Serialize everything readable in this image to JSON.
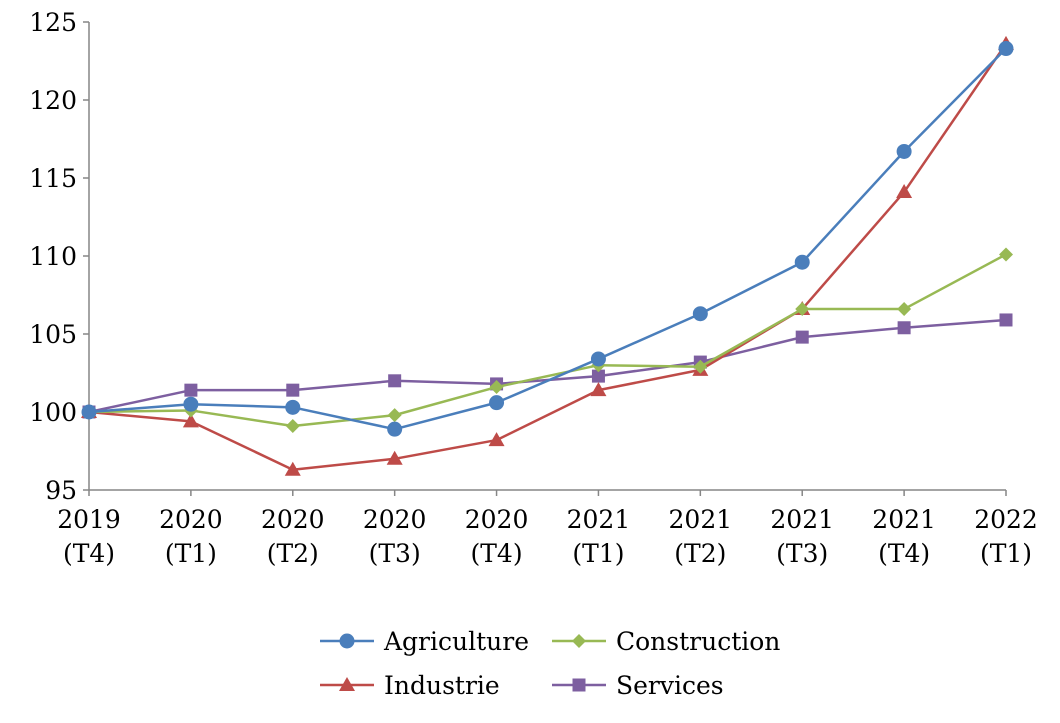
{
  "chart_data": {
    "type": "line",
    "title": "",
    "xlabel": "",
    "ylabel": "",
    "ylim": [
      95,
      125
    ],
    "yticks": [
      95,
      100,
      105,
      110,
      115,
      120,
      125
    ],
    "grid": false,
    "legend_position": "bottom",
    "categories": [
      [
        "2019",
        "(T4)"
      ],
      [
        "2020",
        "(T1)"
      ],
      [
        "2020",
        "(T2)"
      ],
      [
        "2020",
        "(T3)"
      ],
      [
        "2020",
        "(T4)"
      ],
      [
        "2021",
        "(T1)"
      ],
      [
        "2021",
        "(T2)"
      ],
      [
        "2021",
        "(T3)"
      ],
      [
        "2021",
        "(T4)"
      ],
      [
        "2022",
        "(T1)"
      ]
    ],
    "series": [
      {
        "name": "Agriculture",
        "color": "#4A7EBB",
        "marker": "circle",
        "values": [
          100,
          100.5,
          100.3,
          98.9,
          100.6,
          103.4,
          106.3,
          109.6,
          116.7,
          123.3
        ]
      },
      {
        "name": "Construction",
        "color": "#98B954",
        "marker": "diamond",
        "values": [
          100,
          100.1,
          99.1,
          99.8,
          101.6,
          103.0,
          102.9,
          106.6,
          106.6,
          110.1
        ]
      },
      {
        "name": "Industrie",
        "color": "#BE4B48",
        "marker": "triangle",
        "values": [
          100,
          99.4,
          96.3,
          97.0,
          98.2,
          101.4,
          102.7,
          106.6,
          114.1,
          123.6
        ]
      },
      {
        "name": "Services",
        "color": "#7D5FA0",
        "marker": "square",
        "values": [
          100,
          101.4,
          101.4,
          102.0,
          101.8,
          102.3,
          103.2,
          104.8,
          105.4,
          105.9
        ]
      }
    ],
    "legend_order": [
      "Agriculture",
      "Construction",
      "Industrie",
      "Services"
    ]
  }
}
